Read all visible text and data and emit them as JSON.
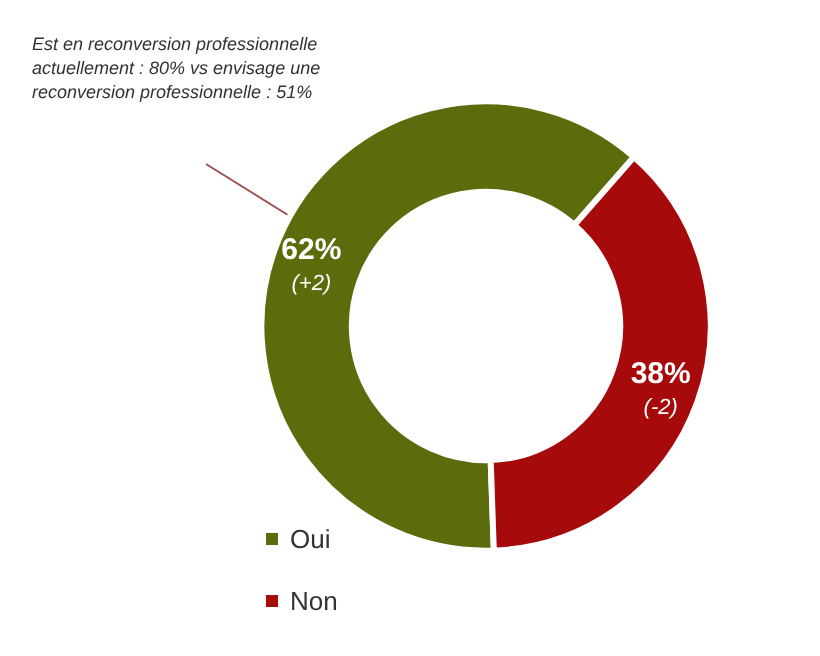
{
  "chart_data": {
    "type": "donut",
    "categories": [
      "Oui",
      "Non"
    ],
    "values": [
      62,
      38
    ],
    "colors": [
      "#5b6c0c",
      "#a60a0a"
    ],
    "value_labels": [
      "62%\n(+2)",
      "38%\n(-2)"
    ],
    "annotations": [
      "Est en reconversion professionnelle actuellement : 80% vs envisage une reconversion professionnelle : 51%"
    ],
    "legend": "bottom"
  }
}
